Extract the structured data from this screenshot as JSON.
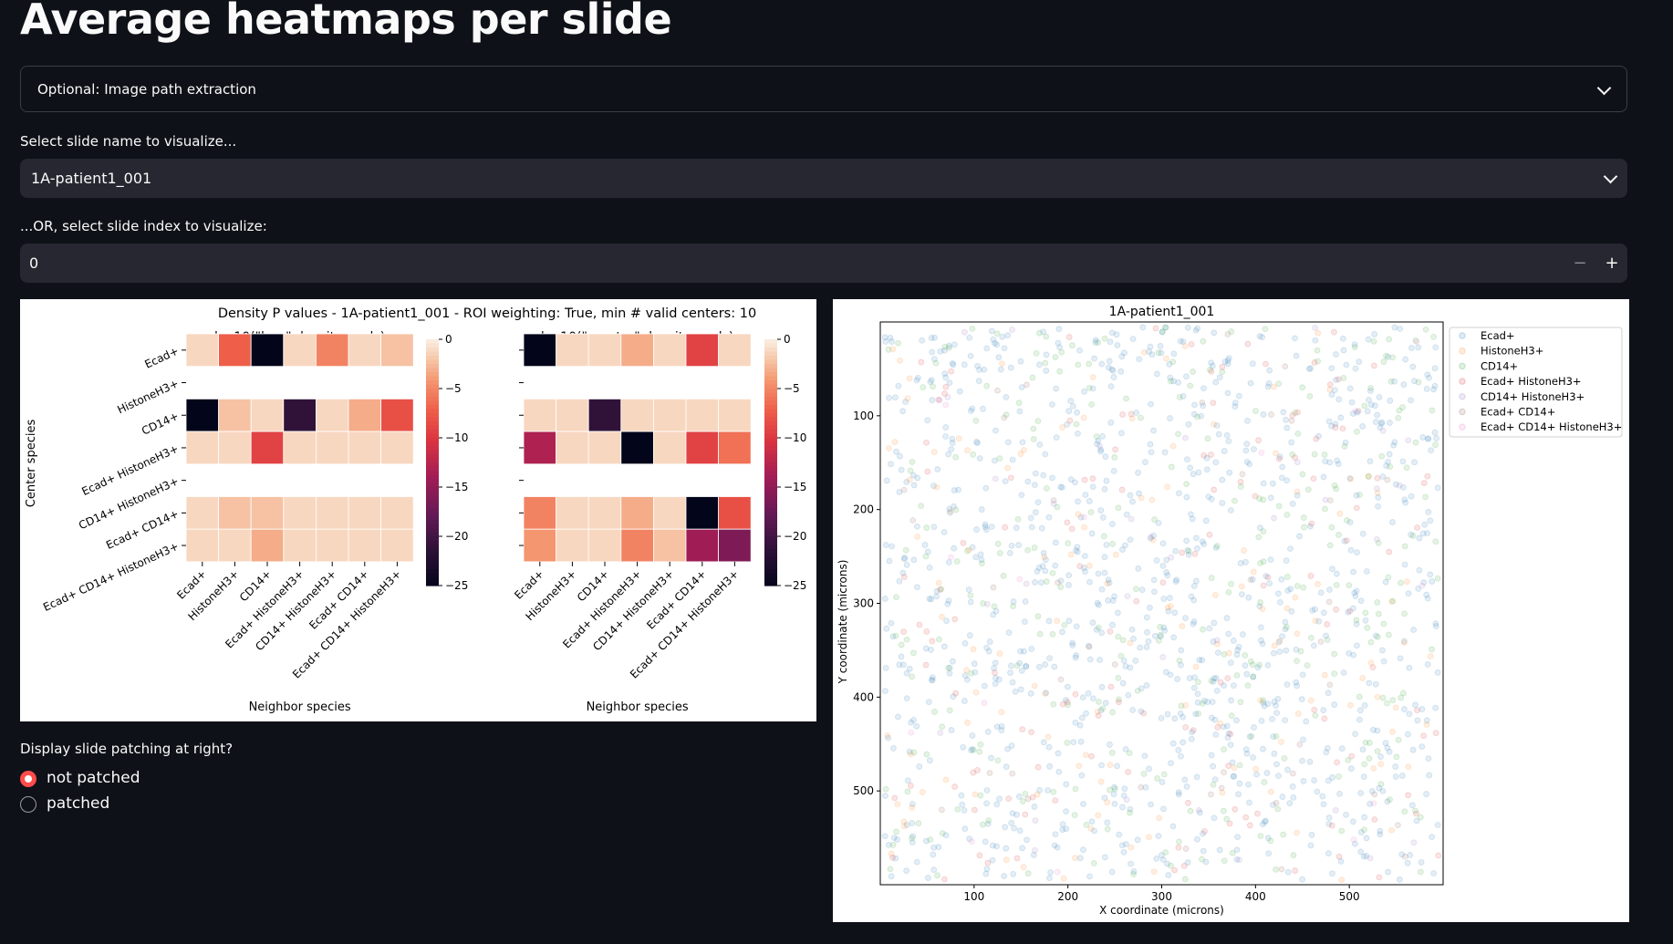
{
  "page": {
    "title": "Average heatmaps per slide"
  },
  "expander": {
    "label": "Optional: Image path extraction"
  },
  "slide_select": {
    "label": "Select slide name to visualize...",
    "value": "1A-patient1_001"
  },
  "slide_index": {
    "label": "...OR, select slide index to visualize:",
    "value": "0",
    "minus": "−",
    "plus": "+"
  },
  "patching": {
    "label": "Display slide patching at right?",
    "options": [
      "not patched",
      "patched"
    ],
    "selected": 0,
    "selected_color": "#ff4b4b"
  },
  "chart_data": [
    {
      "type": "heatmap",
      "title": "Density P values - 1A-patient1_001 - ROI weighting: True, min # valid centers: 10",
      "species": [
        "Ecad+",
        "HistoneH3+",
        "CD14+",
        "Ecad+ HistoneH3+",
        "CD14+ HistoneH3+",
        "Ecad+ CD14+",
        "Ecad+ CD14+ HistoneH3+"
      ],
      "ylabel": "Center species",
      "xlabel": "Neighbor species",
      "colorbar": {
        "ticks": [
          0,
          -5,
          -10,
          -15,
          -20,
          -25
        ],
        "tick_labels": [
          "0",
          "−5",
          "−10",
          "−15",
          "−20",
          "−25"
        ],
        "range": [
          -25,
          0
        ],
        "colormap": "rocket"
      },
      "panels": [
        {
          "title": "log10(\"less\" density pvals)",
          "values": [
            [
              -1,
              -7,
              -25,
              -1,
              -5,
              -1,
              -2
            ],
            [
              null,
              null,
              null,
              null,
              null,
              null,
              null
            ],
            [
              -25,
              -2,
              -1,
              -21,
              -1,
              -3,
              -8
            ],
            [
              -1,
              -1,
              -9,
              -1,
              -1,
              -1,
              -1
            ],
            [
              null,
              null,
              null,
              null,
              null,
              null,
              null
            ],
            [
              -1,
              -2,
              -2,
              -1,
              -1,
              -1,
              -1
            ],
            [
              -1,
              -1,
              -3,
              -1,
              -1,
              -1,
              -1
            ]
          ]
        },
        {
          "title": "log10(\"greater\" density pvals)",
          "values": [
            [
              -25,
              -1,
              -1,
              -3,
              -1,
              -9,
              -1
            ],
            [
              null,
              null,
              null,
              null,
              null,
              null,
              null
            ],
            [
              -1,
              -1,
              -21,
              -1,
              -1,
              -1,
              -1
            ],
            [
              -13,
              -1,
              -1,
              -25,
              -1,
              -9,
              -6
            ],
            [
              null,
              null,
              null,
              null,
              null,
              null,
              null
            ],
            [
              -5,
              -1,
              -1,
              -3,
              -1,
              -25,
              -8
            ],
            [
              -4,
              -1,
              -1,
              -5,
              -2,
              -14,
              -16
            ]
          ]
        }
      ]
    },
    {
      "type": "scatter",
      "title": "1A-patient1_001",
      "xlabel": "X coordinate (microns)",
      "ylabel": "Y coordinate (microns)",
      "xlim": [
        0,
        600
      ],
      "ylim": [
        600,
        0
      ],
      "xticks": [
        100,
        200,
        300,
        400,
        500
      ],
      "yticks": [
        100,
        200,
        300,
        400,
        500
      ],
      "legend_position": "upper-right-outside",
      "series": [
        {
          "name": "Ecad+",
          "color": "#1f77b4"
        },
        {
          "name": "HistoneH3+",
          "color": "#ff7f0e"
        },
        {
          "name": "CD14+",
          "color": "#2ca02c"
        },
        {
          "name": "Ecad+ HistoneH3+",
          "color": "#d62728"
        },
        {
          "name": "CD14+ HistoneH3+",
          "color": "#9467bd"
        },
        {
          "name": "Ecad+ CD14+",
          "color": "#8c564b"
        },
        {
          "name": "Ecad+ CD14+ HistoneH3+",
          "color": "#e377c2"
        }
      ]
    }
  ]
}
